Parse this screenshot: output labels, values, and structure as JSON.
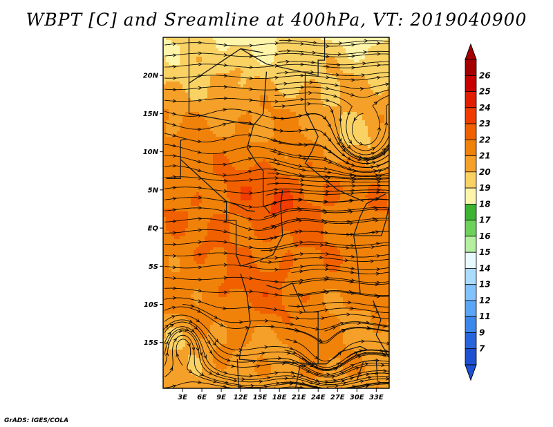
{
  "title": "WBPT [C] and Sreamline at 400hPa, VT: 2019040900",
  "credit": "GrADS: IGES/COLA",
  "map": {
    "lon_range": [
      0,
      35
    ],
    "lat_range": [
      -21,
      25
    ],
    "lat_ticks": [
      {
        "value": 20,
        "label": "20N"
      },
      {
        "value": 15,
        "label": "15N"
      },
      {
        "value": 10,
        "label": "10N"
      },
      {
        "value": 5,
        "label": "5N"
      },
      {
        "value": 0,
        "label": "EQ"
      },
      {
        "value": -5,
        "label": "5S"
      },
      {
        "value": -10,
        "label": "10S"
      },
      {
        "value": -15,
        "label": "15S"
      }
    ],
    "lon_ticks": [
      {
        "value": 3,
        "label": "3E"
      },
      {
        "value": 6,
        "label": "6E"
      },
      {
        "value": 9,
        "label": "9E"
      },
      {
        "value": 12,
        "label": "12E"
      },
      {
        "value": 15,
        "label": "15E"
      },
      {
        "value": 18,
        "label": "18E"
      },
      {
        "value": 21,
        "label": "21E"
      },
      {
        "value": 24,
        "label": "24E"
      },
      {
        "value": 27,
        "label": "27E"
      },
      {
        "value": 30,
        "label": "30E"
      },
      {
        "value": 33,
        "label": "33E"
      }
    ]
  },
  "colorbar": {
    "levels": [
      "26",
      "25",
      "24",
      "23",
      "22",
      "21",
      "20",
      "19",
      "18",
      "17",
      "16",
      "15",
      "14",
      "13",
      "12",
      "11",
      "9",
      "7"
    ],
    "colors": [
      "#a50000",
      "#c80000",
      "#e11e00",
      "#f03c00",
      "#f06000",
      "#f0820a",
      "#f5a028",
      "#fad264",
      "#fff5aa",
      "#3cb432",
      "#6ed25a",
      "#b4f0a0",
      "#e6faff",
      "#aadcff",
      "#82c3ff",
      "#5aa5f5",
      "#3c87eb",
      "#2864dc",
      "#1e50d2"
    ]
  }
}
